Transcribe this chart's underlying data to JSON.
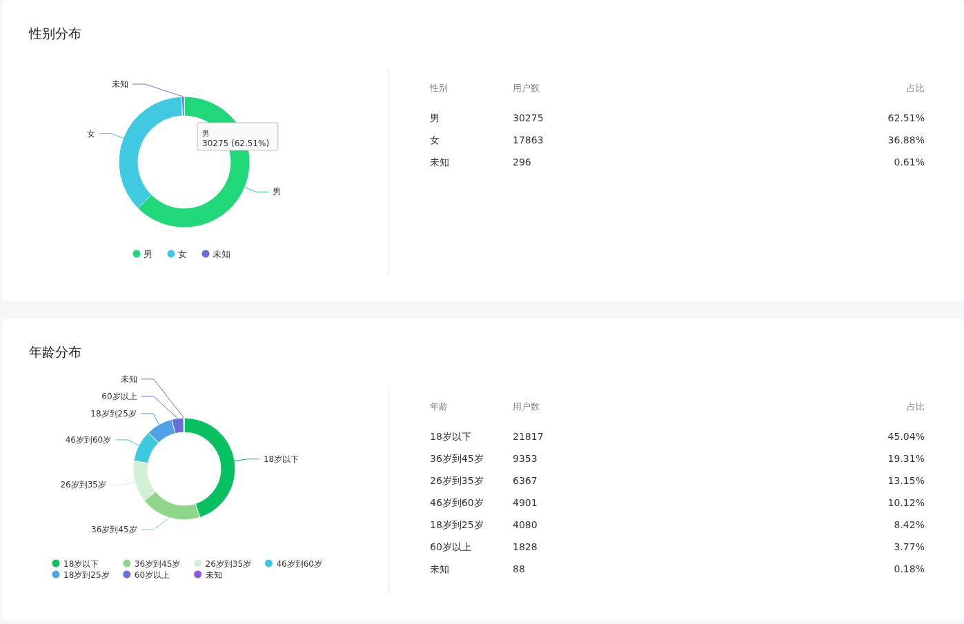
{
  "chart_data": [
    {
      "type": "donut",
      "title": "性别分布",
      "categories": [
        "男",
        "女",
        "未知"
      ],
      "values": [
        62.51,
        36.88,
        0.61
      ],
      "colors": [
        "#20d87a",
        "#40cae2",
        "#6670d6"
      ],
      "legend": "bottom",
      "annotations": [
        "男",
        "30275 (62.51%)"
      ]
    },
    {
      "type": "other",
      "annotations": [
        "性别",
        "用户数",
        "占比",
        "男",
        "30275",
        "62.51%",
        "女",
        "17863",
        "36.88%",
        "未知",
        "296",
        "0.61%"
      ]
    },
    {
      "type": "donut",
      "title": "年龄分布",
      "categories": [
        "18岁以下",
        "36岁到45岁",
        "26岁到35岁",
        "46岁到60岁",
        "18岁到25岁",
        "60岁以上",
        "未知"
      ],
      "values": [
        45.04,
        19.31,
        13.15,
        10.12,
        8.42,
        3.77,
        0.18
      ],
      "colors": [
        "#07c160",
        "#8dd68a",
        "#d2f1d4",
        "#3fc9e1",
        "#4fa2e9",
        "#6670d6",
        "#8c5ad8"
      ],
      "legend": "bottom"
    },
    {
      "type": "other",
      "annotations": [
        "年龄",
        "用户数",
        "占比",
        "18岁以下",
        "21817",
        "45.04%",
        "36岁到45岁",
        "9353",
        "19.31%",
        "26岁到35岁",
        "6367",
        "13.15%",
        "46岁到60岁",
        "4901",
        "10.12%",
        "18岁到25岁",
        "4080",
        "8.42%",
        "60岁以上",
        "1828",
        "3.77%",
        "未知",
        "88",
        "0.18%"
      ]
    }
  ]
}
